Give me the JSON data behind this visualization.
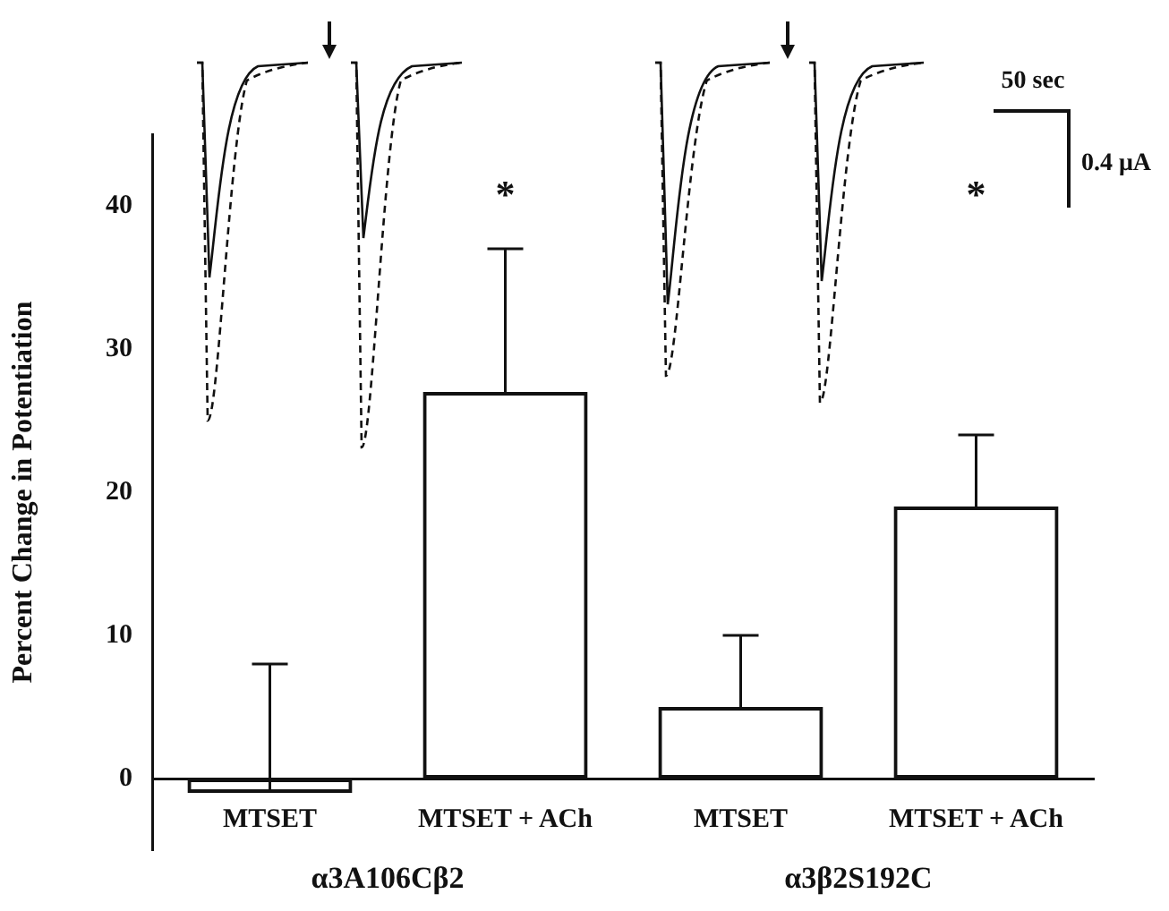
{
  "chart_data": {
    "type": "bar",
    "ylabel": "Percent Change in Potentiation",
    "categories": [
      "MTSET",
      "MTSET + ACh",
      "MTSET",
      "MTSET + ACh"
    ],
    "values": [
      -1,
      27,
      5,
      19
    ],
    "color": "#111111",
    "errors": [
      [
        -1,
        8
      ],
      [
        27,
        37
      ],
      [
        5,
        10
      ],
      [
        19,
        24
      ]
    ],
    "ylim": [
      -5,
      45
    ],
    "yticks": [
      0,
      10,
      20,
      30,
      40
    ],
    "grid": false,
    "legend": false,
    "annotations": [
      "*",
      "*",
      "α3A106Cβ2",
      "α3β2S192C",
      "50 sec",
      "0.4 μA"
    ]
  }
}
